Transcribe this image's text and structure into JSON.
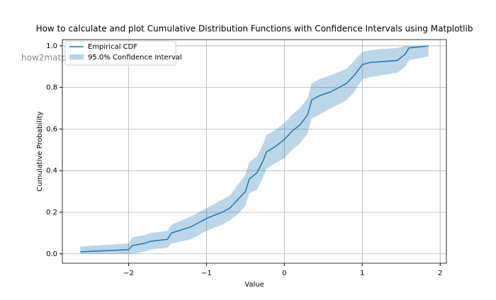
{
  "chart_data": {
    "type": "line",
    "title": "How to calculate and plot Cumulative Distribution Functions with Confidence Intervals using Matplotlib",
    "xlabel": "Value",
    "ylabel": "Cumulative Probability",
    "watermark": "how2matplotlib.com",
    "x": [
      -2.62,
      -2.0,
      -1.95,
      -1.8,
      -1.72,
      -1.5,
      -1.45,
      -1.2,
      -1.0,
      -0.8,
      -0.7,
      -0.6,
      -0.5,
      -0.45,
      -0.35,
      -0.27,
      -0.23,
      -0.1,
      0.0,
      0.1,
      0.2,
      0.3,
      0.35,
      0.45,
      0.6,
      0.8,
      0.9,
      1.0,
      1.1,
      1.45,
      1.55,
      1.6,
      1.85
    ],
    "series": [
      {
        "name": "Empirical CDF",
        "color": "#1f77b4",
        "values": [
          0.01,
          0.02,
          0.04,
          0.05,
          0.06,
          0.07,
          0.1,
          0.13,
          0.17,
          0.2,
          0.22,
          0.26,
          0.3,
          0.36,
          0.39,
          0.45,
          0.49,
          0.52,
          0.55,
          0.59,
          0.62,
          0.67,
          0.74,
          0.76,
          0.78,
          0.82,
          0.86,
          0.91,
          0.92,
          0.93,
          0.96,
          0.99,
          1.0
        ]
      }
    ],
    "band": {
      "name": "95.0% Confidence Interval",
      "color": "#1f77b4",
      "opacity": 0.3,
      "lower": [
        0.0,
        0.0,
        0.0,
        0.01,
        0.02,
        0.03,
        0.05,
        0.07,
        0.11,
        0.14,
        0.16,
        0.19,
        0.23,
        0.29,
        0.31,
        0.37,
        0.41,
        0.44,
        0.46,
        0.5,
        0.53,
        0.58,
        0.65,
        0.67,
        0.7,
        0.74,
        0.78,
        0.84,
        0.85,
        0.87,
        0.9,
        0.93,
        0.95
      ],
      "upper": [
        0.035,
        0.05,
        0.08,
        0.09,
        0.1,
        0.11,
        0.14,
        0.18,
        0.22,
        0.26,
        0.28,
        0.33,
        0.38,
        0.44,
        0.47,
        0.53,
        0.57,
        0.6,
        0.63,
        0.67,
        0.7,
        0.75,
        0.82,
        0.84,
        0.86,
        0.89,
        0.93,
        0.97,
        0.98,
        0.99,
        1.0,
        1.0,
        1.0
      ]
    },
    "xlim": [
      -2.85,
      2.08
    ],
    "ylim": [
      -0.045,
      1.03
    ],
    "xticks": [
      {
        "value": -2,
        "label": "−2"
      },
      {
        "value": -1,
        "label": "−1"
      },
      0,
      1,
      2
    ],
    "yticks": [
      {
        "value": 0,
        "label": "0.0"
      },
      0.2,
      0.4,
      0.6,
      0.8,
      {
        "value": 1,
        "label": "1.0"
      }
    ],
    "grid": true,
    "legend": "upper left"
  }
}
